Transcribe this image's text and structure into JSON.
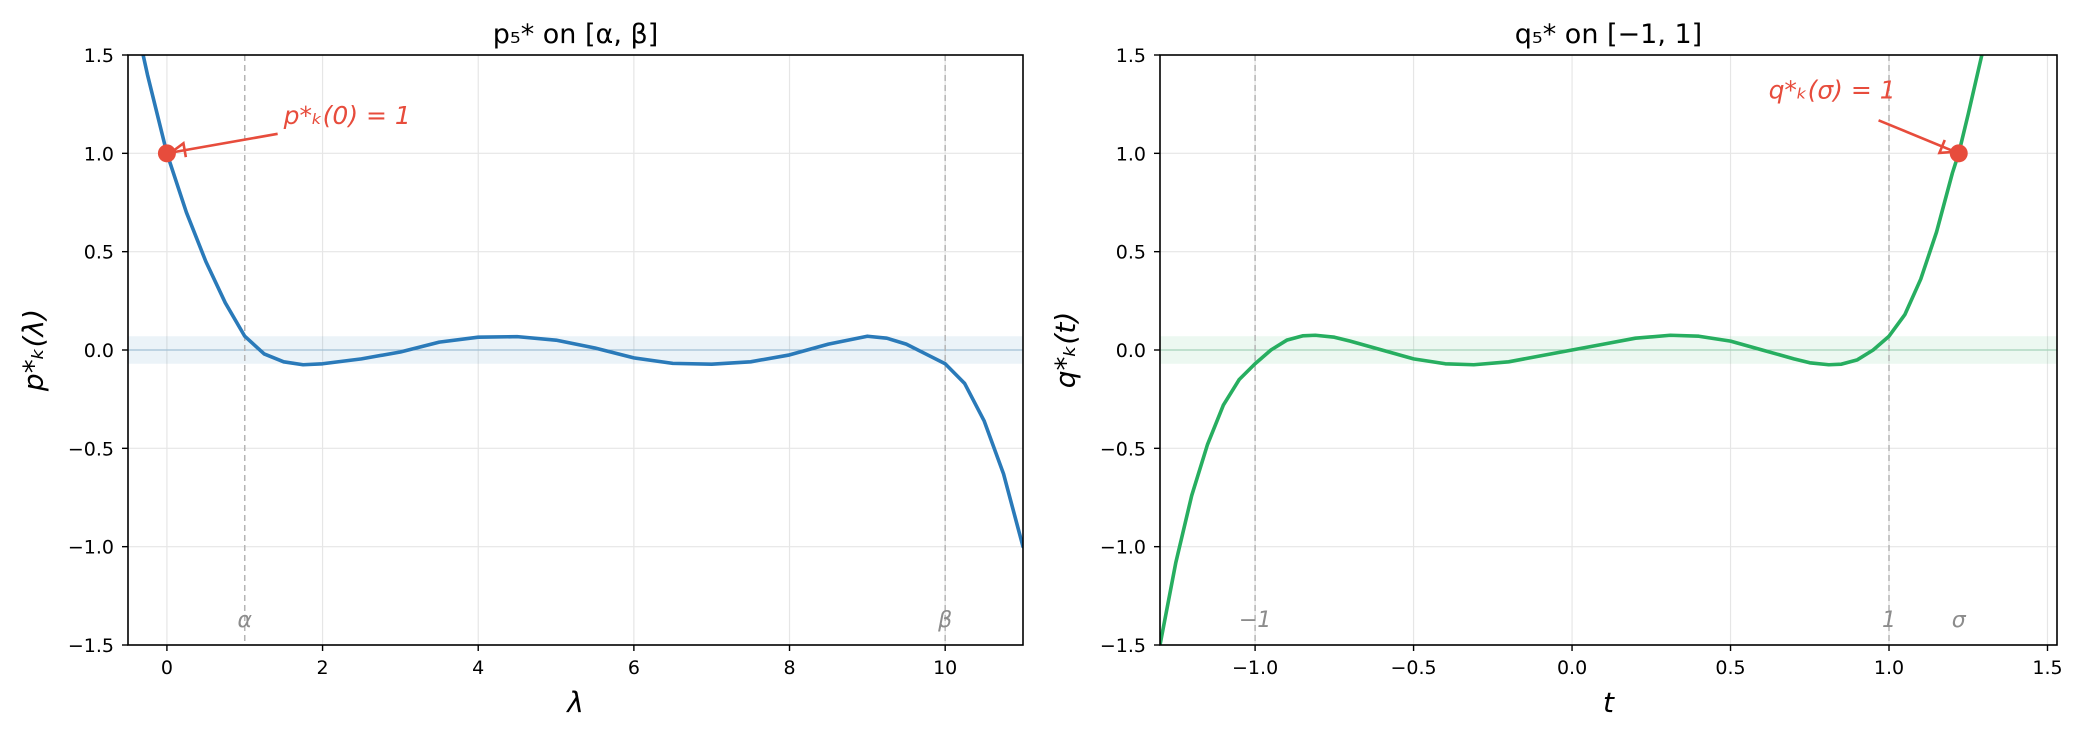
{
  "chart_data": [
    {
      "type": "line",
      "title": "p₅* on [α, β]",
      "xlabel": "λ",
      "ylabel": "p*ₖ(λ)",
      "xlim": [
        -0.5,
        11
      ],
      "ylim": [
        -1.5,
        1.5
      ],
      "x_ticks": [
        "0",
        "2",
        "4",
        "6",
        "8",
        "10"
      ],
      "x_tick_values": [
        0,
        2,
        4,
        6,
        8,
        10
      ],
      "y_ticks": [
        "1.5",
        "1.0",
        "0.5",
        "0.0",
        "−0.5",
        "−1.0",
        "−1.5"
      ],
      "y_tick_values": [
        1.5,
        1.0,
        0.5,
        0.0,
        -0.5,
        -1.0,
        -1.5
      ],
      "grid": true,
      "band": [
        -0.07,
        0.07
      ],
      "band_color": "#1f77b4",
      "line_color": "#2a7ab9",
      "vlines": [
        {
          "x": 1,
          "label": "α"
        },
        {
          "x": 10,
          "label": "β"
        }
      ],
      "domain": [
        1,
        10
      ],
      "marker": {
        "x": 0,
        "y": 1
      },
      "annotation": "p*ₖ(0) = 1",
      "annotation_xy": [
        1.5,
        1.15
      ],
      "series": [
        {
          "x": [
            -0.5,
            -0.25,
            0,
            0.25,
            0.5,
            0.75,
            1,
            1.25,
            1.5,
            1.75,
            2,
            2.5,
            3,
            3.5,
            4,
            4.5,
            5,
            5.5,
            6,
            6.5,
            7,
            7.5,
            8,
            8.5,
            9,
            9.25,
            9.5,
            9.75,
            10,
            10.25,
            10.5,
            10.75,
            11
          ],
          "y": [
            1.85,
            1.4,
            1.0,
            0.7,
            0.45,
            0.24,
            0.07,
            -0.02,
            -0.06,
            -0.075,
            -0.07,
            -0.045,
            -0.01,
            0.04,
            0.065,
            0.068,
            0.05,
            0.01,
            -0.04,
            -0.068,
            -0.072,
            -0.06,
            -0.025,
            0.03,
            0.07,
            0.06,
            0.03,
            -0.02,
            -0.07,
            -0.17,
            -0.36,
            -0.63,
            -1.0
          ]
        }
      ]
    },
    {
      "type": "line",
      "title": "q₅* on [−1, 1]",
      "xlabel": "t",
      "ylabel": "q*ₖ(t)",
      "xlim": [
        -1.3,
        1.53
      ],
      "ylim": [
        -1.5,
        1.5
      ],
      "x_ticks": [
        "−1.0",
        "−0.5",
        "0.0",
        "0.5",
        "1.0",
        "1.5"
      ],
      "x_tick_values": [
        -1.0,
        -0.5,
        0.0,
        0.5,
        1.0,
        1.5
      ],
      "y_ticks": [
        "1.5",
        "1.0",
        "0.5",
        "0.0",
        "−0.5",
        "−1.0",
        "−1.5"
      ],
      "y_tick_values": [
        1.5,
        1.0,
        0.5,
        0.0,
        -0.5,
        -1.0,
        -1.5
      ],
      "grid": true,
      "band": [
        -0.07,
        0.07
      ],
      "band_color": "#27ae60",
      "line_color": "#27ae60",
      "vlines": [
        {
          "x": -1,
          "label": "−1"
        },
        {
          "x": 1,
          "label": "1"
        },
        {
          "x": 1.22,
          "label": "σ",
          "line": false
        }
      ],
      "domain": [
        -1,
        1
      ],
      "marker": {
        "x": 1.22,
        "y": 1
      },
      "annotation": "q*ₖ(σ) = 1",
      "annotation_xy": [
        0.62,
        1.28
      ],
      "series": [
        {
          "x": [
            -1.3,
            -1.25,
            -1.2,
            -1.15,
            -1.1,
            -1.05,
            -1.0,
            -0.95,
            -0.9,
            -0.85,
            -0.81,
            -0.75,
            -0.7,
            -0.6,
            -0.5,
            -0.4,
            -0.31,
            -0.2,
            -0.1,
            0.0,
            0.1,
            0.2,
            0.31,
            0.4,
            0.5,
            0.6,
            0.7,
            0.75,
            0.81,
            0.85,
            0.9,
            0.95,
            1.0,
            1.05,
            1.1,
            1.15,
            1.2,
            1.22,
            1.25,
            1.3,
            1.35
          ],
          "y": [
            -1.5,
            -1.08,
            -0.74,
            -0.48,
            -0.28,
            -0.15,
            -0.07,
            0.0,
            0.05,
            0.072,
            0.075,
            0.065,
            0.045,
            0.0,
            -0.045,
            -0.07,
            -0.075,
            -0.06,
            -0.03,
            0.0,
            0.03,
            0.06,
            0.075,
            0.07,
            0.045,
            0.0,
            -0.045,
            -0.065,
            -0.075,
            -0.072,
            -0.05,
            0.0,
            0.07,
            0.18,
            0.36,
            0.6,
            0.9,
            1.0,
            1.2,
            1.55,
            2.0
          ]
        }
      ]
    }
  ]
}
